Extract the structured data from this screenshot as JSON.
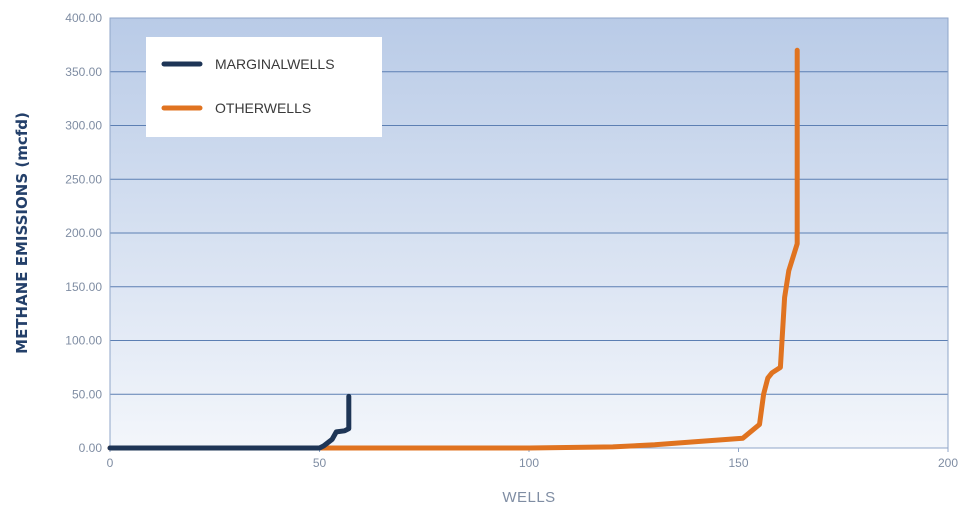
{
  "chart_data": {
    "type": "line",
    "title": "",
    "xlabel": "WELLS",
    "ylabel": "METHANE EMISSIONS (mcfd)",
    "xlim": [
      0,
      200
    ],
    "ylim": [
      0,
      400
    ],
    "x_ticks": [
      "0",
      "50",
      "100",
      "150",
      "200"
    ],
    "y_ticks": [
      "0.00",
      "50.00",
      "100.00",
      "150.00",
      "200.00",
      "250.00",
      "300.00",
      "350.00",
      "400.00"
    ],
    "grid": true,
    "legend": "top-left",
    "colors": {
      "plot_top": "#b9cbe7",
      "plot_bottom": "#f3f6fb",
      "grid": "#5c7fb3",
      "axis": "#8fa6c8"
    },
    "series": [
      {
        "name": "MARGINALWELLS",
        "color": "#1e3556",
        "points": [
          [
            0,
            0
          ],
          [
            50,
            0
          ],
          [
            51,
            2
          ],
          [
            53,
            8
          ],
          [
            54,
            15
          ],
          [
            56,
            16
          ],
          [
            57,
            18
          ],
          [
            57,
            48
          ]
        ]
      },
      {
        "name": "OTHERWELLS",
        "color": "#e07320",
        "points": [
          [
            0,
            0
          ],
          [
            100,
            0
          ],
          [
            120,
            1
          ],
          [
            130,
            3
          ],
          [
            140,
            6
          ],
          [
            151,
            9
          ],
          [
            155,
            22
          ],
          [
            156,
            50
          ],
          [
            157,
            65
          ],
          [
            158,
            70
          ],
          [
            160,
            75
          ],
          [
            161,
            140
          ],
          [
            162,
            165
          ],
          [
            164,
            190
          ],
          [
            164,
            370
          ]
        ]
      }
    ]
  }
}
